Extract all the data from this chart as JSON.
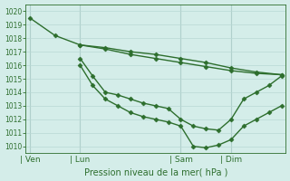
{
  "xlabel": "Pression niveau de la mer( hPa )",
  "ylim": [
    1009.5,
    1020.5
  ],
  "yticks": [
    1010,
    1011,
    1012,
    1013,
    1014,
    1015,
    1016,
    1017,
    1018,
    1019,
    1020
  ],
  "bg_color": "#d4ede9",
  "grid_color": "#b8d8d4",
  "line_color": "#2d6e2d",
  "marker_color": "#2d6e2d",
  "vline_color": "#a0c0bc",
  "xlim": [
    -1,
    61
  ],
  "xtick_positions": [
    0,
    12,
    36,
    48
  ],
  "xtick_labels": [
    "Ven",
    "Lun",
    "Sam",
    "Dim"
  ],
  "vline_positions": [
    0,
    12,
    36,
    48
  ],
  "series": [
    {
      "x": [
        0,
        6,
        12,
        18,
        24,
        30,
        36,
        42,
        48,
        54,
        60
      ],
      "y": [
        1019.5,
        1018.2,
        1017.5,
        1017.2,
        1016.8,
        1016.5,
        1016.2,
        1015.9,
        1015.6,
        1015.4,
        1015.3
      ],
      "marker": "D",
      "markersize": 2.5,
      "linewidth": 1.0
    },
    {
      "x": [
        12,
        18,
        24,
        30,
        36,
        42,
        48,
        54,
        60
      ],
      "y": [
        1017.5,
        1017.3,
        1017.0,
        1016.8,
        1016.5,
        1016.2,
        1015.8,
        1015.5,
        1015.3
      ],
      "marker": "D",
      "markersize": 2.5,
      "linewidth": 1.0
    },
    {
      "x": [
        12,
        15,
        18,
        21,
        24,
        27,
        30,
        33,
        36,
        39,
        42,
        45,
        48,
        51,
        54,
        57,
        60
      ],
      "y": [
        1016.5,
        1015.2,
        1014.0,
        1013.8,
        1013.5,
        1013.2,
        1013.0,
        1012.8,
        1012.0,
        1011.5,
        1011.3,
        1011.2,
        1012.0,
        1013.5,
        1014.0,
        1014.5,
        1015.2
      ],
      "marker": "D",
      "markersize": 2.5,
      "linewidth": 1.0
    },
    {
      "x": [
        12,
        15,
        18,
        21,
        24,
        27,
        30,
        33,
        36,
        39,
        42,
        45,
        48,
        51,
        54,
        57,
        60
      ],
      "y": [
        1016.0,
        1014.5,
        1013.5,
        1013.0,
        1012.5,
        1012.2,
        1012.0,
        1011.8,
        1011.5,
        1010.0,
        1009.9,
        1010.1,
        1010.5,
        1011.5,
        1012.0,
        1012.5,
        1013.0
      ],
      "marker": "D",
      "markersize": 2.5,
      "linewidth": 1.0
    }
  ]
}
